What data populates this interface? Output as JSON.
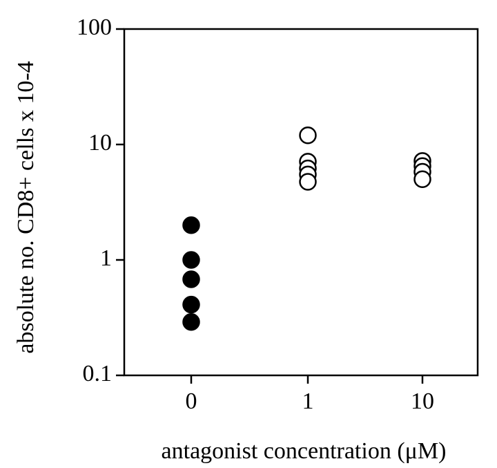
{
  "chart_data": {
    "type": "dotplot",
    "xlabel": "antagonist concentration (μM)",
    "ylabel": "absolute no. CD8+ cells x 10-4",
    "categories": [
      "0",
      "1",
      "10"
    ],
    "values": [
      [
        2.0,
        1.0,
        0.68,
        0.41,
        0.29
      ],
      [
        12,
        7.1,
        6.2,
        5.5,
        4.75
      ],
      [
        7.2,
        6.5,
        5.8,
        5.0
      ]
    ],
    "filled": [
      true,
      false,
      false
    ],
    "color": "#000000",
    "log_scale": true,
    "ylim": [
      0.1,
      100
    ],
    "yticks": [
      0.1,
      1,
      10,
      100
    ]
  }
}
